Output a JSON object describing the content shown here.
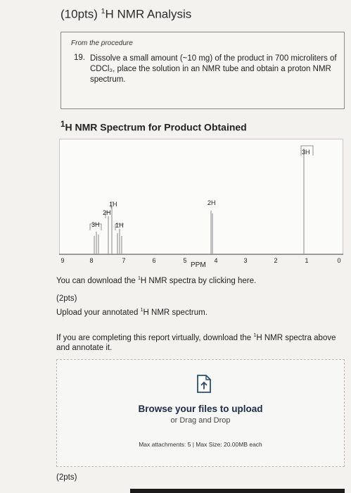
{
  "header": {
    "title_prefix": "(10pts) ",
    "title_sup": "1",
    "title_rest": "H NMR Analysis"
  },
  "procedure": {
    "label": "From the procedure",
    "number": "19.",
    "text": "Dissolve a small amount (~10 mg) of the product in 700 microliters of CDCl₃, place the solution in an NMR tube and obtain a proton NMR spectrum."
  },
  "spectrum": {
    "title_sup": "1",
    "title_rest": "H NMR Spectrum for Product Obtained",
    "x_label": "PPM",
    "ticks": [
      "9",
      "8",
      "7",
      "6",
      "5",
      "4",
      "3",
      "2",
      "1",
      "0"
    ],
    "peak_labels": [
      "3H",
      "2H",
      "1H",
      "1H",
      "2H",
      "3H"
    ]
  },
  "download": {
    "text_before": "You can download the ",
    "sup": "1",
    "text_after": "H NMR spectra by clicking here."
  },
  "upload_section": {
    "points": "(2pts)",
    "label_before": "Upload your annotated ",
    "label_sup": "1",
    "label_after": "H NMR spectrum.",
    "virtual_before": "If you are completing this report virtually, download the ",
    "virtual_sup": "1",
    "virtual_after": "H NMR spectra above and annotate it."
  },
  "dropzone": {
    "icon": "upload-file-icon",
    "browse": "Browse your files to upload",
    "drag": "or Drag and Drop",
    "max": "Max attachments: 5 | Max Size: 20.00MB each"
  },
  "next_section": {
    "points": "(2pts)"
  }
}
